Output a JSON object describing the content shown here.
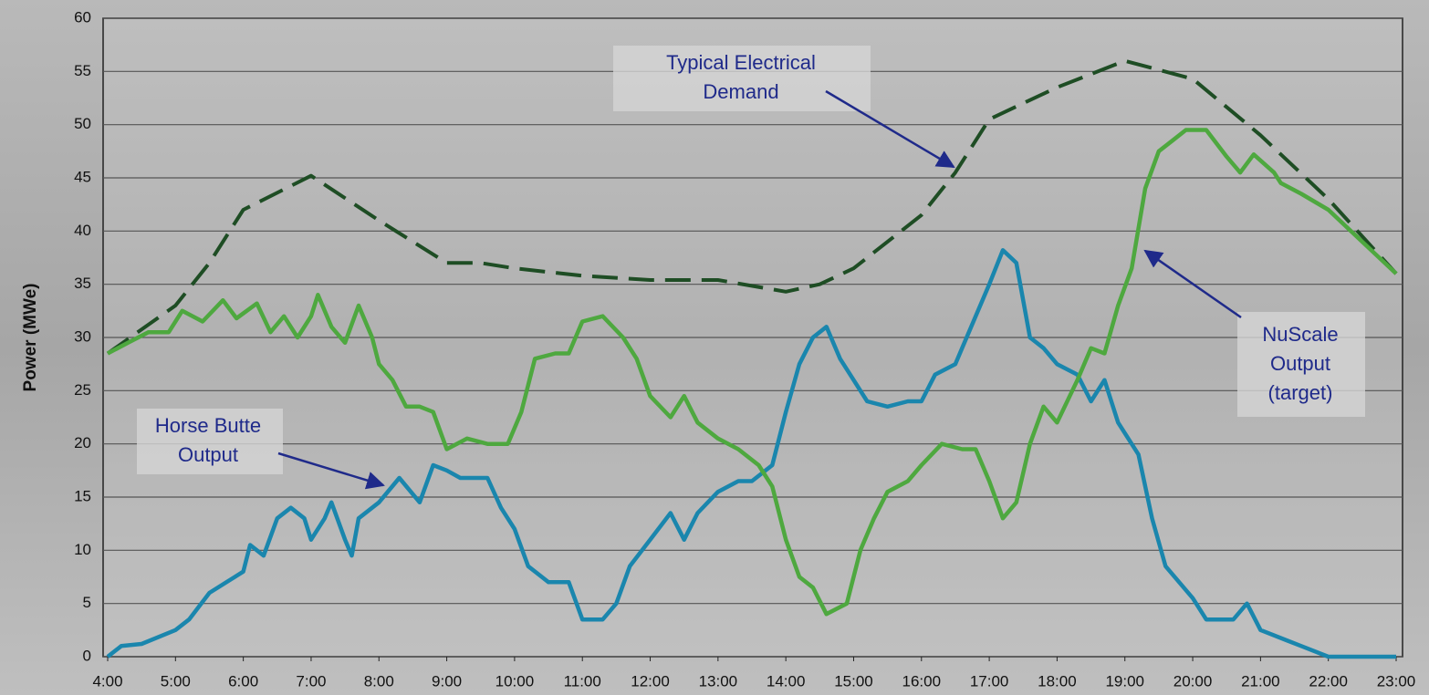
{
  "chart_data": {
    "type": "line",
    "ylabel": "Power (MWe)",
    "xlim": [
      4,
      23
    ],
    "xticks": [
      {
        "value": 4,
        "label": "4:00"
      },
      {
        "value": 5,
        "label": "5:00"
      },
      {
        "value": 6,
        "label": "6:00"
      },
      {
        "value": 7,
        "label": "7:00"
      },
      {
        "value": 8,
        "label": "8:00"
      },
      {
        "value": 9,
        "label": "9:00"
      },
      {
        "value": 10,
        "label": "10:00"
      },
      {
        "value": 11,
        "label": "11:00"
      },
      {
        "value": 12,
        "label": "12:00"
      },
      {
        "value": 13,
        "label": "13:00"
      },
      {
        "value": 14,
        "label": "14:00"
      },
      {
        "value": 15,
        "label": "15:00"
      },
      {
        "value": 16,
        "label": "16:00"
      },
      {
        "value": 17,
        "label": "17:00"
      },
      {
        "value": 18,
        "label": "18:00"
      },
      {
        "value": 19,
        "label": "19:00"
      },
      {
        "value": 20,
        "label": "20:00"
      },
      {
        "value": 21,
        "label": "21:00"
      },
      {
        "value": 22,
        "label": "22:00"
      },
      {
        "value": 23,
        "label": "23:00"
      }
    ],
    "ylim": [
      0,
      60
    ],
    "yticks": [
      0,
      5,
      10,
      15,
      20,
      25,
      30,
      35,
      40,
      45,
      50,
      55,
      60
    ],
    "grid": true,
    "annotations": [
      {
        "lines": [
          "Typical Electrical",
          "Demand"
        ]
      },
      {
        "lines": [
          "Horse Butte",
          "Output"
        ]
      },
      {
        "lines": [
          "NuScale",
          "Output",
          "(target)"
        ]
      }
    ],
    "series": [
      {
        "name": "Typical Electrical Demand",
        "color": "#1e4d24",
        "dashed": true,
        "x": [
          4,
          5,
          5.5,
          6,
          7,
          8,
          9,
          9.5,
          10,
          11,
          12,
          13,
          14,
          14.5,
          15,
          16,
          16.5,
          17,
          18,
          19,
          20,
          21,
          22,
          23
        ],
        "values": [
          28.5,
          33,
          37,
          42,
          45.2,
          41,
          37,
          37,
          36.5,
          35.8,
          35.4,
          35.4,
          34.3,
          35,
          36.5,
          41.5,
          45.5,
          50.5,
          53.5,
          56,
          54.3,
          49,
          43,
          36
        ]
      },
      {
        "name": "Horse Butte Output",
        "color": "#1a86ad",
        "dashed": false,
        "x": [
          4,
          4.2,
          4.5,
          5,
          5.2,
          5.5,
          6,
          6.1,
          6.3,
          6.5,
          6.7,
          6.9,
          7,
          7.2,
          7.3,
          7.5,
          7.6,
          7.7,
          8,
          8.3,
          8.6,
          8.8,
          9,
          9.2,
          9.6,
          9.8,
          10,
          10.2,
          10.5,
          10.8,
          11,
          11.3,
          11.5,
          11.7,
          12,
          12.3,
          12.5,
          12.7,
          13,
          13.3,
          13.5,
          13.8,
          14,
          14.2,
          14.4,
          14.6,
          14.8,
          15,
          15.2,
          15.5,
          15.8,
          16,
          16.2,
          16.5,
          16.8,
          17,
          17.2,
          17.4,
          17.6,
          17.8,
          18,
          18.3,
          18.5,
          18.7,
          18.9,
          19.2,
          19.4,
          19.6,
          19.8,
          20,
          20.2,
          20.6,
          20.8,
          21,
          21.4,
          21.6,
          22,
          23
        ],
        "values": [
          0,
          1,
          1.2,
          2.5,
          3.5,
          6,
          8,
          10.5,
          9.5,
          13,
          14,
          13,
          11,
          13,
          14.5,
          11,
          9.5,
          13,
          14.5,
          16.8,
          14.5,
          18,
          17.5,
          16.8,
          16.8,
          14,
          12,
          8.5,
          7,
          7,
          3.5,
          3.5,
          5,
          8.5,
          11,
          13.5,
          11,
          13.5,
          15.5,
          16.5,
          16.5,
          18,
          23,
          27.5,
          30,
          31,
          28,
          26,
          24,
          23.5,
          24,
          24,
          26.5,
          27.5,
          32,
          35,
          38.2,
          37,
          30,
          29,
          27.5,
          26.5,
          24,
          26,
          22,
          19,
          13,
          8.5,
          7,
          5.5,
          3.5,
          3.5,
          5,
          2.5,
          1.5,
          1,
          0,
          0
        ]
      },
      {
        "name": "NuScale Output (target)",
        "color": "#4ea83f",
        "dashed": false,
        "x": [
          4,
          4.3,
          4.6,
          4.9,
          5.1,
          5.4,
          5.7,
          5.9,
          6.2,
          6.4,
          6.6,
          6.8,
          7,
          7.1,
          7.3,
          7.5,
          7.7,
          7.9,
          8,
          8.2,
          8.4,
          8.6,
          8.8,
          9,
          9.3,
          9.6,
          9.9,
          10.1,
          10.3,
          10.6,
          10.8,
          11,
          11.3,
          11.6,
          11.8,
          12,
          12.3,
          12.5,
          12.7,
          13,
          13.3,
          13.6,
          13.8,
          14,
          14.2,
          14.4,
          14.6,
          14.9,
          15.1,
          15.3,
          15.5,
          15.8,
          16,
          16.3,
          16.6,
          16.8,
          17,
          17.2,
          17.4,
          17.6,
          17.8,
          18,
          18.3,
          18.5,
          18.7,
          18.9,
          19.1,
          19.3,
          19.5,
          19.7,
          19.9,
          20.2,
          20.5,
          20.7,
          20.9,
          21.2,
          21.3,
          21.6,
          22,
          22.5,
          23
        ],
        "values": [
          28.5,
          29.5,
          30.5,
          30.5,
          32.5,
          31.5,
          33.5,
          31.8,
          33.2,
          30.5,
          32,
          30,
          32,
          34,
          31,
          29.5,
          33,
          30,
          27.5,
          26,
          23.5,
          23.5,
          23,
          19.5,
          20.5,
          20,
          20,
          23,
          28,
          28.5,
          28.5,
          31.5,
          32,
          30,
          28,
          24.5,
          22.5,
          24.5,
          22,
          20.5,
          19.5,
          18,
          16,
          11,
          7.5,
          6.5,
          4,
          5,
          10,
          13,
          15.5,
          16.5,
          18,
          20,
          19.5,
          19.5,
          16.5,
          13,
          14.5,
          20,
          23.5,
          22,
          26,
          29,
          28.5,
          33,
          36.5,
          44,
          47.5,
          48.5,
          49.5,
          49.5,
          47,
          45.5,
          47.2,
          45.5,
          44.5,
          43.5,
          42,
          39,
          36
        ]
      }
    ]
  }
}
